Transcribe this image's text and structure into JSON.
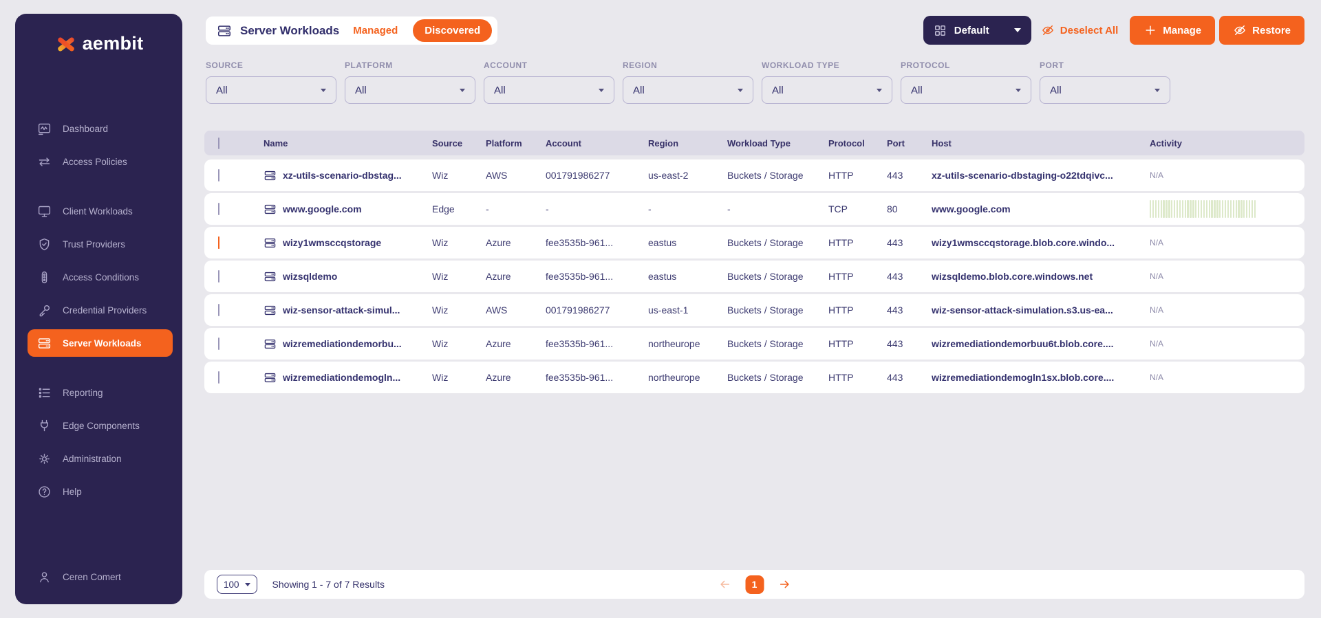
{
  "brand": {
    "name": "aembit"
  },
  "colors": {
    "accent": "#f4621e",
    "sidebar_bg": "#2b2350",
    "page_bg": "#e9e8ed",
    "navy_text": "#34316e",
    "table_header_bg": "#dcdae6",
    "sparkline_bar": "#dde9ca"
  },
  "sidebar": {
    "items": [
      {
        "label": "Dashboard",
        "icon": "dashboard-icon"
      },
      {
        "label": "Access Policies",
        "icon": "access-policies-icon"
      },
      {
        "label": "Client Workloads",
        "icon": "client-workloads-icon"
      },
      {
        "label": "Trust Providers",
        "icon": "trust-providers-icon"
      },
      {
        "label": "Access Conditions",
        "icon": "access-conditions-icon"
      },
      {
        "label": "Credential Providers",
        "icon": "credential-providers-icon"
      },
      {
        "label": "Server Workloads",
        "icon": "server-workloads-icon",
        "active": true
      },
      {
        "label": "Reporting",
        "icon": "reporting-icon"
      },
      {
        "label": "Edge Components",
        "icon": "edge-components-icon"
      },
      {
        "label": "Administration",
        "icon": "administration-icon"
      },
      {
        "label": "Help",
        "icon": "help-icon"
      }
    ],
    "user": {
      "name": "Ceren Comert",
      "icon": "user-icon"
    }
  },
  "header": {
    "title": "Server Workloads",
    "tabs": [
      {
        "label": "Managed",
        "active": false
      },
      {
        "label": "Discovered",
        "active": true
      }
    ]
  },
  "toolbar": {
    "view_label": "Default",
    "deselect_all_label": "Deselect All",
    "manage_label": "Manage",
    "restore_label": "Restore"
  },
  "filters": [
    {
      "label": "SOURCE",
      "value": "All"
    },
    {
      "label": "PLATFORM",
      "value": "All"
    },
    {
      "label": "ACCOUNT",
      "value": "All"
    },
    {
      "label": "REGION",
      "value": "All"
    },
    {
      "label": "WORKLOAD TYPE",
      "value": "All"
    },
    {
      "label": "PROTOCOL",
      "value": "All"
    },
    {
      "label": "PORT",
      "value": "All"
    }
  ],
  "table": {
    "columns": [
      "Name",
      "Source",
      "Platform",
      "Account",
      "Region",
      "Workload Type",
      "Protocol",
      "Port",
      "Host",
      "Activity"
    ],
    "sparkline_bars": 40,
    "rows": [
      {
        "checked": false,
        "name": "xz-utils-scenario-dbstag...",
        "source": "Wiz",
        "platform": "AWS",
        "account": "001791986277",
        "region": "us-east-2",
        "workload_type": "Buckets / Storage",
        "protocol": "HTTP",
        "port": "443",
        "host": "xz-utils-scenario-dbstaging-o22tdqivc...",
        "activity": "N/A"
      },
      {
        "checked": false,
        "name": "www.google.com",
        "source": "Edge",
        "platform": "-",
        "account": "-",
        "region": "-",
        "workload_type": "-",
        "protocol": "TCP",
        "port": "80",
        "host": "www.google.com",
        "activity": "sparkline"
      },
      {
        "checked": true,
        "name": "wizy1wmsccqstorage",
        "source": "Wiz",
        "platform": "Azure",
        "account": "fee3535b-961...",
        "region": "eastus",
        "workload_type": "Buckets / Storage",
        "protocol": "HTTP",
        "port": "443",
        "host": "wizy1wmsccqstorage.blob.core.windo...",
        "activity": "N/A"
      },
      {
        "checked": false,
        "name": "wizsqldemo",
        "source": "Wiz",
        "platform": "Azure",
        "account": "fee3535b-961...",
        "region": "eastus",
        "workload_type": "Buckets / Storage",
        "protocol": "HTTP",
        "port": "443",
        "host": "wizsqldemo.blob.core.windows.net",
        "activity": "N/A"
      },
      {
        "checked": false,
        "name": "wiz-sensor-attack-simul...",
        "source": "Wiz",
        "platform": "AWS",
        "account": "001791986277",
        "region": "us-east-1",
        "workload_type": "Buckets / Storage",
        "protocol": "HTTP",
        "port": "443",
        "host": "wiz-sensor-attack-simulation.s3.us-ea...",
        "activity": "N/A"
      },
      {
        "checked": false,
        "name": "wizremediationdemorbu...",
        "source": "Wiz",
        "platform": "Azure",
        "account": "fee3535b-961...",
        "region": "northeurope",
        "workload_type": "Buckets / Storage",
        "protocol": "HTTP",
        "port": "443",
        "host": "wizremediationdemorbuu6t.blob.core....",
        "activity": "N/A"
      },
      {
        "checked": false,
        "name": "wizremediationdemogln...",
        "source": "Wiz",
        "platform": "Azure",
        "account": "fee3535b-961...",
        "region": "northeurope",
        "workload_type": "Buckets / Storage",
        "protocol": "HTTP",
        "port": "443",
        "host": "wizremediationdemogln1sx.blob.core....",
        "activity": "N/A"
      }
    ]
  },
  "pagination": {
    "page_size": "100",
    "summary": "Showing 1 - 7 of 7 Results",
    "current_page": "1"
  }
}
